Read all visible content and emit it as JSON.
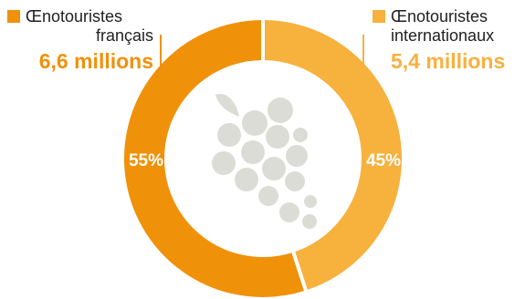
{
  "chart_data": {
    "type": "donut",
    "categories": [
      "Œnotouristes français",
      "Œnotouristes internationaux"
    ],
    "values": [
      55,
      45
    ],
    "value_labels": [
      "55%",
      "45%"
    ],
    "totals": [
      "6,6 millions",
      "5,4 millions"
    ],
    "colors": [
      "#F0910A",
      "#F7B13D"
    ],
    "center_icon": "grape-bunch-icon",
    "center_icon_color": "#DCDCD6"
  },
  "legend": {
    "left": {
      "line1": "Œnotouristes",
      "line2": "français",
      "value": "6,6 millions",
      "color": "#F0910A"
    },
    "right": {
      "line1": "Œnotouristes",
      "line2": "internationaux",
      "value": "5,4 millions",
      "color": "#F7B13D"
    }
  }
}
